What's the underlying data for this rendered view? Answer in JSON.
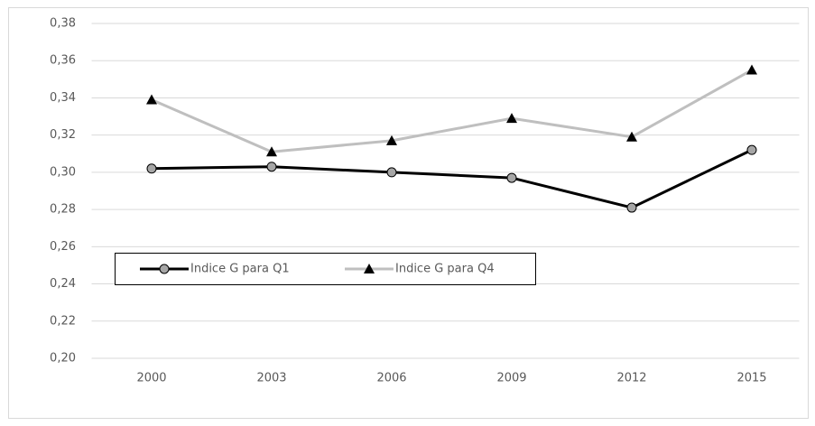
{
  "chart_data": {
    "type": "line",
    "categories": [
      "2000",
      "2003",
      "2006",
      "2009",
      "2012",
      "2015"
    ],
    "series": [
      {
        "name": "Indice G para Q1",
        "color": "#000000",
        "marker": "circle",
        "marker_color": "#a6a6a6",
        "values": [
          0.302,
          0.303,
          0.3,
          0.297,
          0.281,
          0.312
        ]
      },
      {
        "name": "Indice G para Q4",
        "color": "#bfbfbf",
        "marker": "triangle",
        "marker_color": "#000000",
        "values": [
          0.339,
          0.311,
          0.317,
          0.329,
          0.319,
          0.355
        ]
      }
    ],
    "ylim": [
      0.2,
      0.38
    ],
    "yticks": [
      {
        "value": 0.2,
        "label": "0,20"
      },
      {
        "value": 0.22,
        "label": "0,22"
      },
      {
        "value": 0.24,
        "label": "0,24"
      },
      {
        "value": 0.26,
        "label": "0,26"
      },
      {
        "value": 0.28,
        "label": "0,28"
      },
      {
        "value": 0.3,
        "label": "0,30"
      },
      {
        "value": 0.32,
        "label": "0,32"
      },
      {
        "value": 0.34,
        "label": "0,34"
      },
      {
        "value": 0.36,
        "label": "0,36"
      },
      {
        "value": 0.38,
        "label": "0,38"
      }
    ],
    "grid": true,
    "legend": "inside"
  }
}
